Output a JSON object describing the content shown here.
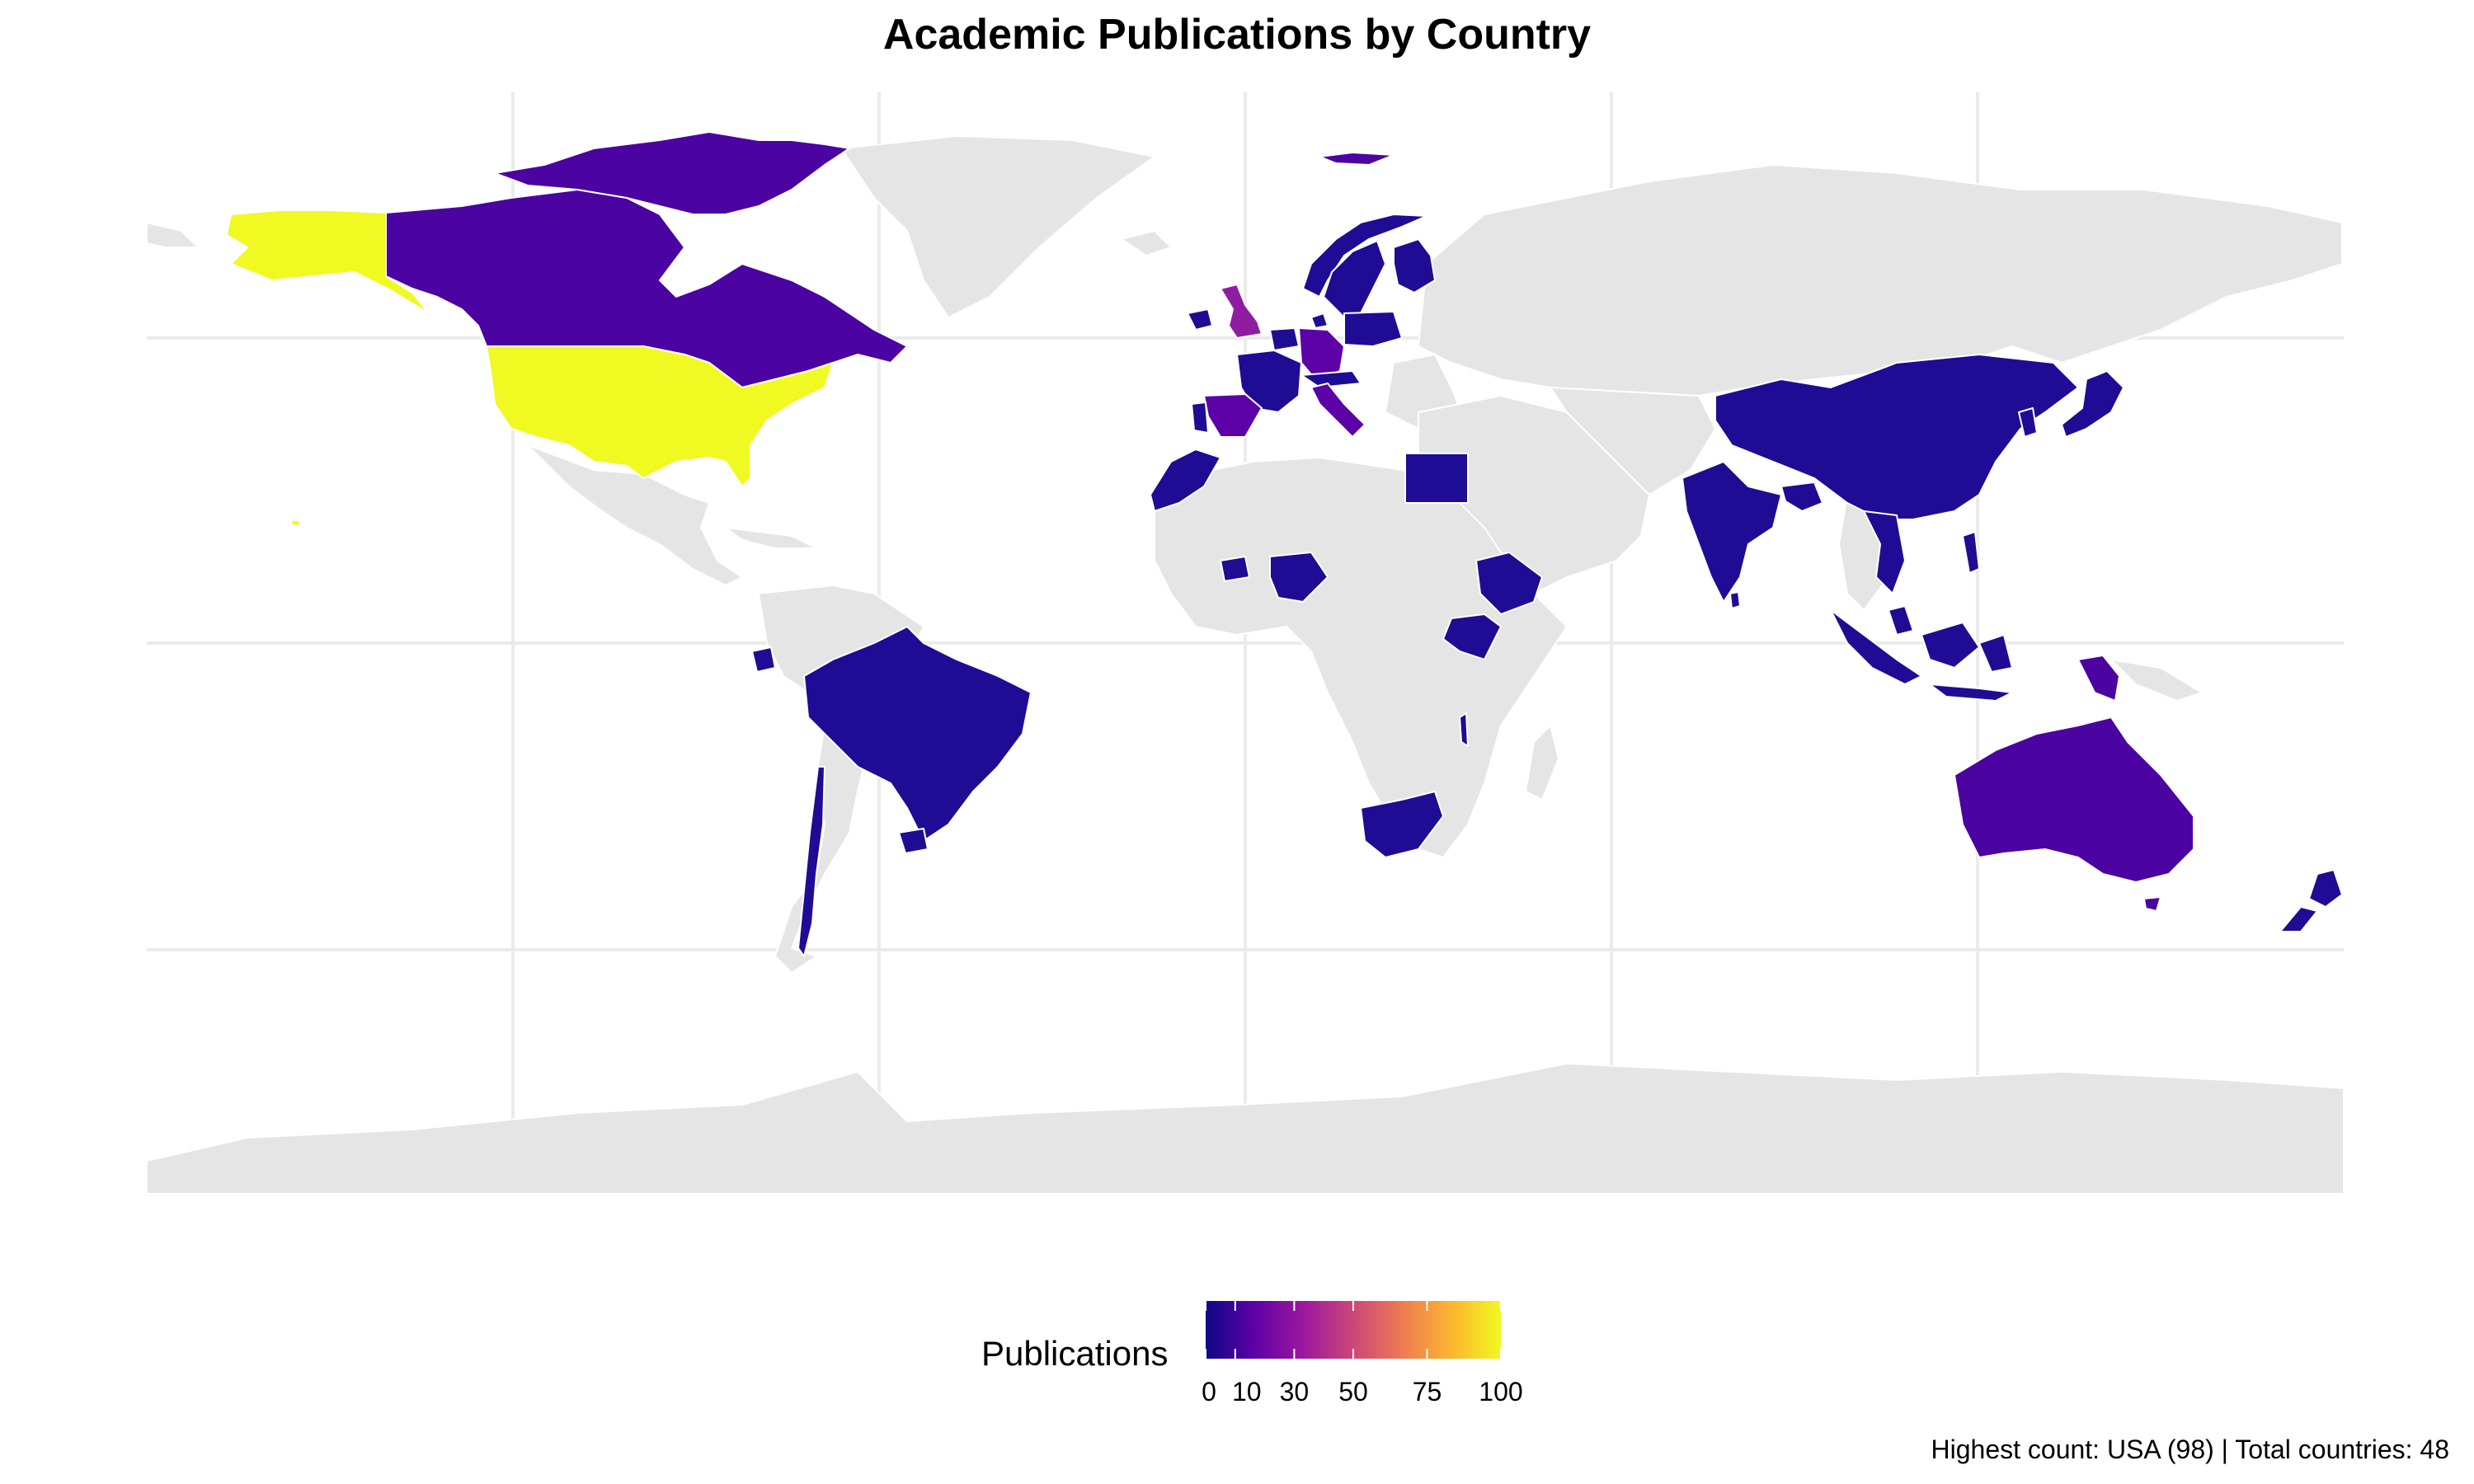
{
  "title": "Academic Publications by Country",
  "caption": "Highest count: USA (98) | Total countries: 48",
  "legend": {
    "title": "Publications",
    "ticks": [
      "0",
      "10",
      "30",
      "50",
      "75",
      "100"
    ],
    "tick_values": [
      0,
      10,
      30,
      50,
      75,
      100
    ],
    "range": [
      0,
      100
    ],
    "palette": [
      "#0d0887",
      "#5c01a6",
      "#9c179e",
      "#cc4778",
      "#ed7953",
      "#fdb42f",
      "#f0f921"
    ]
  },
  "colors": {
    "land": "#e5e5e5",
    "border": "#ffffff",
    "grid": "#ebebeb",
    "high": "#f0f921",
    "mid": "#8f1da1",
    "low": "#4b03a1",
    "lowest": "#1f0c94"
  },
  "chart_data": {
    "type": "choropleth",
    "title": "Academic Publications by Country",
    "legend_position": "bottom",
    "grid": true,
    "fill_scale": "plasma",
    "fill_range": [
      0,
      100
    ],
    "regions": [
      {
        "name": "USA",
        "value": 98
      },
      {
        "name": "United Kingdom",
        "value": 22
      },
      {
        "name": "Canada",
        "value": 10
      },
      {
        "name": "Australia",
        "value": 10
      },
      {
        "name": "Germany",
        "value": 8
      },
      {
        "name": "Italy",
        "value": 8
      },
      {
        "name": "France",
        "value": 6
      },
      {
        "name": "Spain",
        "value": 5
      },
      {
        "name": "Greenland-area Arctic islands (Canada)",
        "value": 10
      },
      {
        "name": "China",
        "value": 4
      },
      {
        "name": "India",
        "value": 4
      },
      {
        "name": "Japan",
        "value": 5
      },
      {
        "name": "Brazil",
        "value": 4
      },
      {
        "name": "Norway",
        "value": 4
      },
      {
        "name": "Sweden",
        "value": 4
      },
      {
        "name": "Finland",
        "value": 3
      },
      {
        "name": "Poland",
        "value": 3
      },
      {
        "name": "Netherlands",
        "value": 4
      },
      {
        "name": "Belgium",
        "value": 3
      },
      {
        "name": "Switzerland",
        "value": 3
      },
      {
        "name": "Austria",
        "value": 3
      },
      {
        "name": "Denmark",
        "value": 3
      },
      {
        "name": "Ireland",
        "value": 3
      },
      {
        "name": "Portugal",
        "value": 3
      },
      {
        "name": "Morocco",
        "value": 3
      },
      {
        "name": "Egypt",
        "value": 2
      },
      {
        "name": "Nigeria",
        "value": 2
      },
      {
        "name": "Ghana",
        "value": 2
      },
      {
        "name": "Ethiopia",
        "value": 2
      },
      {
        "name": "Kenya",
        "value": 2
      },
      {
        "name": "Malawi",
        "value": 1
      },
      {
        "name": "South Africa",
        "value": 2
      },
      {
        "name": "Ecuador",
        "value": 2
      },
      {
        "name": "Chile",
        "value": 2
      },
      {
        "name": "Uruguay",
        "value": 2
      },
      {
        "name": "Indonesia",
        "value": 3
      },
      {
        "name": "Malaysia",
        "value": 2
      },
      {
        "name": "Vietnam",
        "value": 2
      },
      {
        "name": "Thailand",
        "value": 2
      },
      {
        "name": "Bangladesh",
        "value": 2
      },
      {
        "name": "Sri Lanka",
        "value": 2
      },
      {
        "name": "Nepal",
        "value": 2
      },
      {
        "name": "Papua New Guinea",
        "value": 2
      },
      {
        "name": "New Zealand",
        "value": 2
      },
      {
        "name": "South Korea",
        "value": 2
      },
      {
        "name": "Philippines",
        "value": 2
      },
      {
        "name": "Svalbard (Norway)",
        "value": 4
      },
      {
        "name": "Hawaii (USA)",
        "value": 98
      }
    ]
  }
}
